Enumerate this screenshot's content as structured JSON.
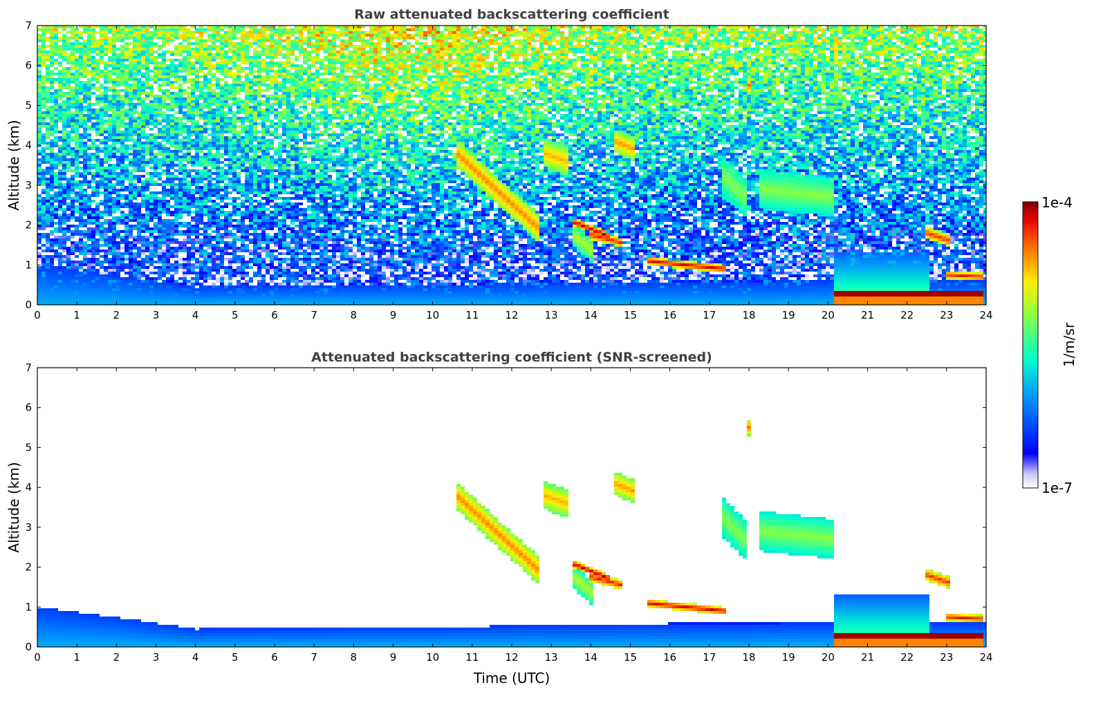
{
  "chart_data": [
    {
      "type": "heatmap",
      "title": "Raw attenuated backscattering coefficient",
      "xlabel": "",
      "ylabel": "Altitude (km)",
      "xlim": [
        0,
        24
      ],
      "ylim": [
        0,
        7
      ],
      "x_ticks": [
        "0",
        "1",
        "2",
        "3",
        "4",
        "5",
        "6",
        "7",
        "8",
        "9",
        "10",
        "11",
        "12",
        "13",
        "14",
        "15",
        "16",
        "17",
        "18",
        "19",
        "20",
        "21",
        "22",
        "23",
        "24"
      ],
      "y_ticks": [
        "0",
        "1",
        "2",
        "3",
        "4",
        "5",
        "6",
        "7"
      ],
      "log_color_scale": true,
      "features": [
        {
          "kind": "boundary_layer",
          "t": [
            0,
            24
          ],
          "top_km": [
            1.0,
            0.45
          ]
        },
        {
          "kind": "aerosol_layer",
          "t": [
            10.6,
            12.7
          ],
          "alt_km": [
            3.8,
            1.9
          ]
        },
        {
          "kind": "cloud",
          "t": [
            12.8,
            13.5
          ],
          "alt_km": [
            3.7,
            4.2
          ]
        },
        {
          "kind": "cloud",
          "t": [
            14.6,
            15.1
          ],
          "alt_km": [
            3.9,
            4.3
          ]
        },
        {
          "kind": "cloud",
          "t": [
            13.5,
            14.5
          ],
          "alt_km": [
            2.1,
            1.7
          ]
        },
        {
          "kind": "cloud",
          "t": [
            15.5,
            17.4
          ],
          "alt_km": [
            1.1,
            0.9
          ]
        },
        {
          "kind": "aerosol_layer",
          "t": [
            17.3,
            17.9
          ],
          "alt_km": [
            3.3,
            2.7
          ]
        },
        {
          "kind": "aerosol_layer",
          "t": [
            18.3,
            20.2
          ],
          "alt_km": [
            3.0,
            2.6
          ]
        },
        {
          "kind": "cloud",
          "t": [
            20.3,
            23.9
          ],
          "alt_km": [
            0.3,
            0.3
          ]
        },
        {
          "kind": "cloud",
          "t": [
            22.5,
            23.1
          ],
          "alt_km": [
            1.8,
            1.6
          ]
        },
        {
          "kind": "cloud",
          "t": [
            18.0,
            18.1
          ],
          "alt_km": [
            5.5,
            5.3
          ]
        }
      ]
    },
    {
      "type": "heatmap",
      "title": "Attenuated backscattering coefficient (SNR-screened)",
      "xlabel": "Time (UTC)",
      "ylabel": "Altitude (km)",
      "xlim": [
        0,
        24
      ],
      "ylim": [
        0,
        7
      ],
      "x_ticks": [
        "0",
        "1",
        "2",
        "3",
        "4",
        "5",
        "6",
        "7",
        "8",
        "9",
        "10",
        "11",
        "12",
        "13",
        "14",
        "15",
        "16",
        "17",
        "18",
        "19",
        "20",
        "21",
        "22",
        "23",
        "24"
      ],
      "y_ticks": [
        "0",
        "1",
        "2",
        "3",
        "4",
        "5",
        "6",
        "7"
      ],
      "log_color_scale": true
    }
  ],
  "colorbar": {
    "label": "1/m/sr",
    "max_label": "1e-4",
    "min_label": "1e-7",
    "colormap": "jet (white at minimum)",
    "colors": [
      "#ffffff",
      "#0000ff",
      "#00ccff",
      "#00ff88",
      "#ffff00",
      "#ff8800",
      "#ff0000",
      "#800000"
    ]
  }
}
